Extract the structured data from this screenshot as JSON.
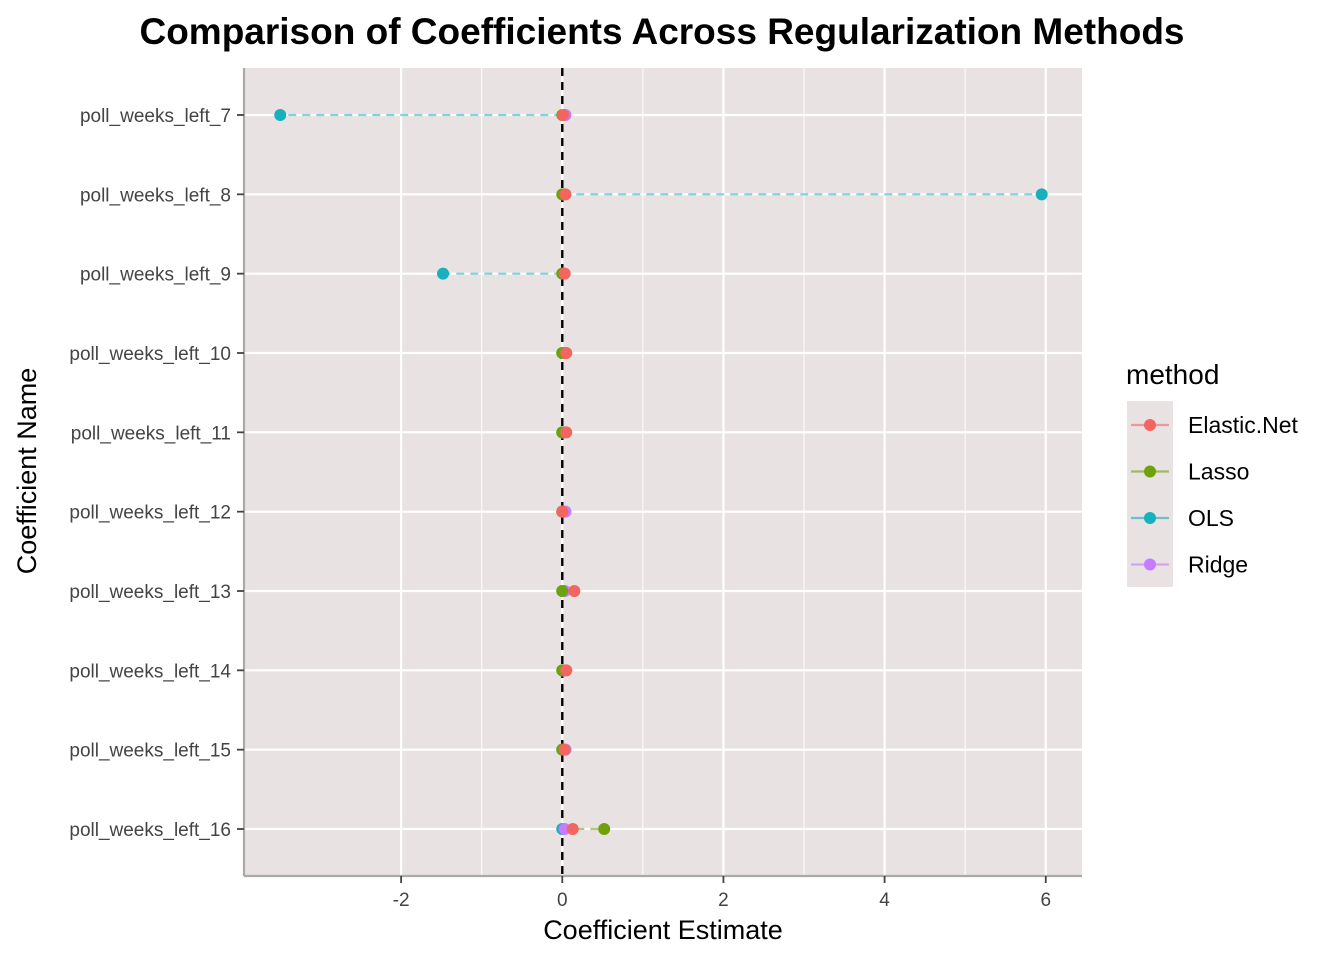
{
  "chart_data": {
    "type": "scatter",
    "title": "Comparison of Coefficients Across Regularization Methods",
    "xlabel": "Coefficient Estimate",
    "ylabel": "Coefficient Name",
    "xlim": [
      -3.95,
      6.45
    ],
    "x_ticks": [
      -2,
      0,
      2,
      4,
      6
    ],
    "x_tick_labels": [
      "-2",
      "0",
      "2",
      "4",
      "6"
    ],
    "reference_line": {
      "x": 0,
      "style": "dashed",
      "color": "#000000"
    },
    "categories": [
      "poll_weeks_left_7",
      "poll_weeks_left_8",
      "poll_weeks_left_9",
      "poll_weeks_left_10",
      "poll_weeks_left_11",
      "poll_weeks_left_12",
      "poll_weeks_left_13",
      "poll_weeks_left_14",
      "poll_weeks_left_15",
      "poll_weeks_left_16"
    ],
    "legend": {
      "title": "method",
      "position": "right"
    },
    "background": "#e8e2e2",
    "grid": true,
    "series": [
      {
        "name": "OLS",
        "color": "#17b0bd",
        "values": [
          -3.5,
          5.95,
          -1.48,
          0.0,
          0.0,
          0.0,
          0.0,
          0.0,
          0.0,
          0.0
        ]
      },
      {
        "name": "Ridge",
        "color": "#c77cff",
        "values": [
          0.04,
          0.02,
          0.02,
          0.03,
          0.02,
          0.04,
          0.03,
          0.02,
          0.04,
          0.03
        ]
      },
      {
        "name": "Lasso",
        "color": "#6fa10d",
        "values": [
          0.0,
          0.0,
          0.0,
          0.0,
          0.0,
          0.0,
          0.0,
          0.0,
          0.0,
          0.52
        ]
      },
      {
        "name": "Elastic.Net",
        "color": "#f3665f",
        "values": [
          0.01,
          0.04,
          0.03,
          0.05,
          0.05,
          0.0,
          0.15,
          0.05,
          0.03,
          0.13
        ]
      }
    ],
    "legend_order": [
      "Elastic.Net",
      "Lasso",
      "OLS",
      "Ridge"
    ]
  }
}
